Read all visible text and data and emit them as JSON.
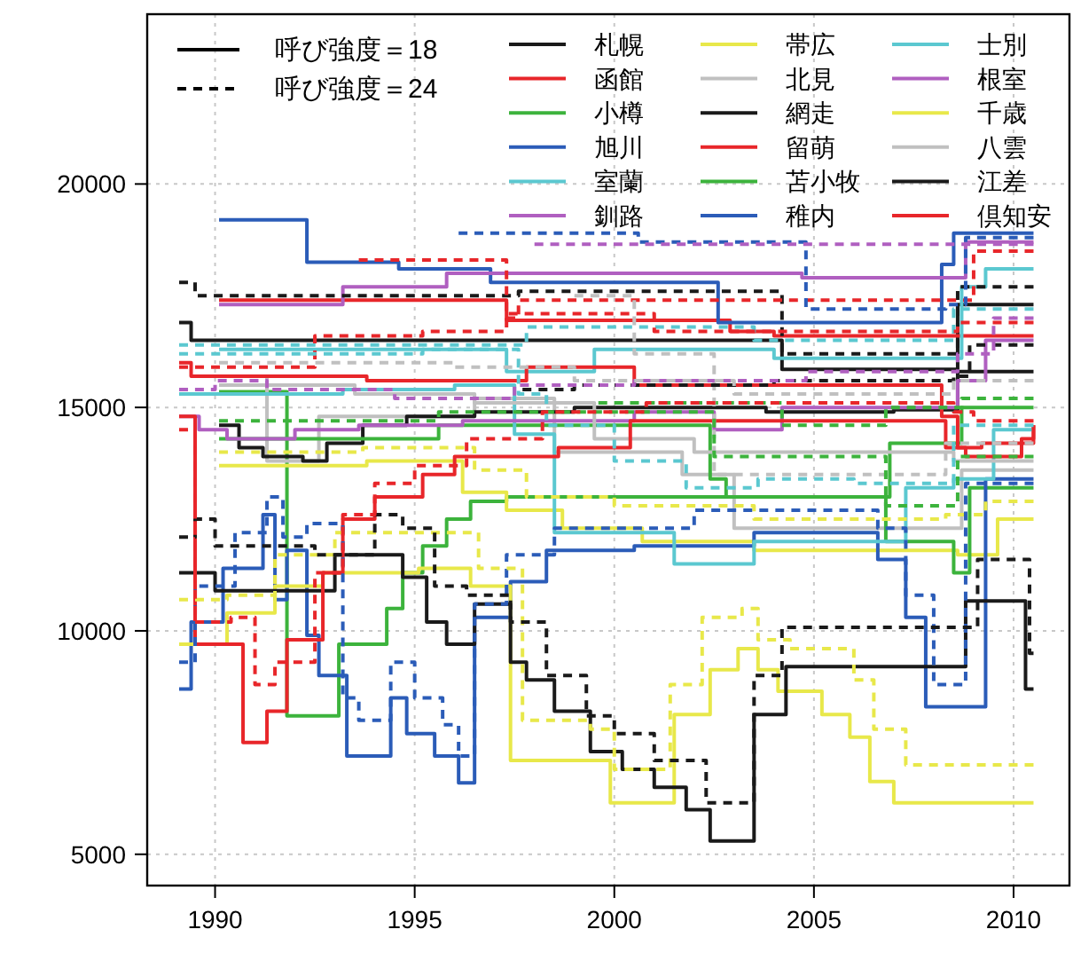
{
  "chart_data": {
    "type": "step",
    "xlim": [
      1988.3,
      2011.4
    ],
    "ylim": [
      4300,
      23800
    ],
    "xticks": [
      1990,
      1995,
      2000,
      2005,
      2010
    ],
    "yticks": [
      5000,
      10000,
      15000,
      20000
    ],
    "grid": true,
    "legend": "top",
    "annotations": [
      "呼び強度＝18",
      "呼び強度＝24"
    ],
    "series": [
      {
        "name": "札幌",
        "color": "#1a1a1a",
        "line_style": "solid",
        "x": [
          1989.1,
          1989.4,
          2004.2,
          2008.6,
          2010.5
        ],
        "values": [
          16900,
          16500,
          15850,
          17300,
          17300
        ]
      },
      {
        "name": "函館",
        "color": "#e8262a",
        "line_style": "solid",
        "x": [
          1990.1,
          1997.3,
          2002.9,
          2004,
          2010.5
        ],
        "values": [
          17400,
          16950,
          16700,
          16600,
          16600
        ]
      },
      {
        "name": "小樽",
        "color": "#3cb33c",
        "line_style": "solid",
        "x": [
          1990.1,
          1991.8,
          1993.1,
          1994.3,
          1994.7,
          1995.2,
          1995.8,
          1996.4,
          1997.3,
          2006.9,
          2008.7,
          2010.5
        ],
        "values": [
          15350,
          8100,
          9700,
          10500,
          11300,
          11900,
          12500,
          12900,
          13000,
          14200,
          15000,
          15000
        ]
      },
      {
        "name": "旭川",
        "color": "#2b5cb8",
        "line_style": "solid",
        "x": [
          1990.1,
          1992.3,
          1994.6,
          1996.9,
          2002.6,
          2008.2,
          2008.5,
          2010.5
        ],
        "values": [
          19200,
          18250,
          18100,
          17800,
          16900,
          18200,
          18900,
          18900
        ]
      },
      {
        "name": "室蘭",
        "color": "#5bc8d0",
        "line_style": "solid",
        "x": [
          1990.1,
          1997.3,
          1999.5,
          2004,
          2008.7,
          2009.3,
          2010.5
        ],
        "values": [
          16300,
          15800,
          16300,
          16100,
          17700,
          18100,
          18100
        ]
      },
      {
        "name": "釧路",
        "color": "#b05fc0",
        "line_style": "solid",
        "x": [
          1990.1,
          1993.2,
          1995.8,
          2004.7,
          2008.8,
          2010.5
        ],
        "values": [
          17300,
          17700,
          18000,
          17900,
          18700,
          18700
        ]
      },
      {
        "name": "帯広",
        "color": "#e8e84a",
        "line_style": "solid",
        "x": [
          1990.1,
          1993.8,
          1996.2,
          1997.3,
          1998.7,
          2000.7,
          2003.5,
          2006.5,
          2008.6,
          2009.6,
          2010.5
        ],
        "values": [
          13700,
          13800,
          13100,
          12700,
          12300,
          12000,
          11800,
          11800,
          11700,
          12500,
          12500
        ]
      },
      {
        "name": "北見",
        "color": "#c0c0c0",
        "line_style": "solid",
        "x": [
          1990.1,
          1991.3,
          1992.6,
          1996.5,
          1998.5,
          2001.7,
          2003,
          2008.7,
          2010.5
        ],
        "values": [
          15700,
          13800,
          14800,
          15200,
          14000,
          13500,
          12300,
          13600,
          13600
        ]
      },
      {
        "name": "網走",
        "color": "#1a1a1a",
        "line_style": "solid",
        "x": [
          1990.1,
          1990.6,
          1991.2,
          1992.2,
          1992.8,
          1993.7,
          1994.8,
          1996.5,
          1999,
          2003.8,
          2007,
          2008.6,
          2010.5
        ],
        "values": [
          14600,
          14100,
          13900,
          13800,
          14200,
          14600,
          14800,
          14900,
          15000,
          14900,
          14950,
          15800,
          15800
        ]
      },
      {
        "name": "留萌",
        "color": "#e8262a",
        "line_style": "solid",
        "x": [
          1989.1,
          1989.4,
          1993.8,
          1997.8,
          2000.5,
          2008.2,
          2008.6,
          2009.2,
          2010.5
        ],
        "values": [
          16000,
          15700,
          15600,
          15900,
          15500,
          14800,
          14100,
          14200,
          14600
        ]
      },
      {
        "name": "苫小牧",
        "color": "#3cb33c",
        "line_style": "solid",
        "x": [
          1990.1,
          1995.6,
          2002.4,
          2002.8,
          2006.8,
          2008.5,
          2008.9,
          2010.5
        ],
        "values": [
          14300,
          14600,
          13400,
          13000,
          12000,
          11300,
          13200,
          13200
        ]
      },
      {
        "name": "稚内",
        "color": "#2b5cb8",
        "line_style": "solid",
        "x": [
          1989.1,
          1989.4,
          1990.2,
          1991.2,
          1991.5,
          1991.8,
          1992.3,
          1992.6,
          1993.3,
          1994.4,
          1994.8,
          1995.5,
          1996.1,
          1996.5,
          1997.4,
          1998.3,
          2000.5,
          2003.5,
          2006.6,
          2007.3,
          2007.8,
          2008.3,
          2009.3,
          2010.5
        ],
        "values": [
          8700,
          10200,
          11400,
          12600,
          10700,
          11800,
          9900,
          9000,
          7200,
          8500,
          7700,
          7200,
          6600,
          10300,
          11100,
          11800,
          11900,
          12200,
          11600,
          10300,
          8300,
          8300,
          13400,
          13400
        ]
      },
      {
        "name": "士別",
        "color": "#5bc8d0",
        "line_style": "solid",
        "x": [
          1989.1,
          1993.2,
          1996,
          1997.5,
          1998.5,
          2001.5,
          2003.5,
          2007.3,
          2008.5,
          2009.5,
          2010.5
        ],
        "values": [
          15300,
          15400,
          15500,
          14400,
          12200,
          11500,
          12000,
          13200,
          13400,
          14500,
          14500
        ]
      },
      {
        "name": "根室",
        "color": "#b05fc0",
        "line_style": "solid",
        "x": [
          1989.1,
          1989.6,
          1990.3,
          1992,
          1993.6,
          1996.2,
          2000.5,
          2002.5,
          2004.2,
          2008.6,
          2009.3,
          2010.5
        ],
        "values": [
          14800,
          14500,
          14300,
          14500,
          14600,
          14700,
          14900,
          14500,
          15000,
          15600,
          16500,
          16500
        ]
      },
      {
        "name": "千歳",
        "color": "#e8e84a",
        "line_style": "solid",
        "x": [
          1989.1,
          1990.3,
          1991.5,
          1992.7,
          1995.1,
          1996.4,
          1997.4,
          1999.9,
          2001.5,
          2002.4,
          2003.1,
          2003.6,
          2004.1,
          2005.2,
          2005.9,
          2006.4,
          2007,
          2010.5
        ],
        "values": [
          9700,
          10400,
          11000,
          11300,
          11400,
          11000,
          7100,
          6150,
          8130,
          9130,
          9600,
          9130,
          8650,
          8130,
          7620,
          6630,
          6150,
          6150
        ]
      },
      {
        "name": "八雲",
        "color": "#c0c0c0",
        "line_style": "solid",
        "x": [
          1990.1,
          1993.5,
          1996.5,
          1999.5,
          2002,
          2008.5,
          2010.5
        ],
        "values": [
          15500,
          15300,
          15100,
          14300,
          14000,
          13800,
          13800
        ]
      },
      {
        "name": "江差",
        "color": "#1a1a1a",
        "line_style": "solid",
        "x": [
          1989.1,
          1990,
          1993,
          1994.7,
          1995.3,
          1995.8,
          1996.5,
          1997.4,
          1997.8,
          1998.5,
          1999.4,
          2000.2,
          2001,
          2001.8,
          2002.4,
          2003.5,
          2004.3,
          2008.8,
          2010.3,
          2010.5
        ],
        "values": [
          11300,
          10900,
          11700,
          11200,
          10200,
          9700,
          10600,
          9300,
          8900,
          8200,
          7300,
          6900,
          6500,
          6000,
          5300,
          8130,
          9200,
          10670,
          8700,
          8700
        ]
      },
      {
        "name": "倶知安",
        "color": "#e8262a",
        "line_style": "solid",
        "x": [
          1989.1,
          1989.5,
          1990.7,
          1991.3,
          1991.8,
          1992.7,
          1993.2,
          1994,
          1995.2,
          1996,
          1998.6,
          2000.4,
          2007.6,
          2008.3,
          2008.8,
          2010.2,
          2010.5
        ],
        "values": [
          14800,
          9700,
          7500,
          8200,
          9800,
          11300,
          12500,
          13000,
          13500,
          13900,
          14100,
          14700,
          14700,
          14100,
          13900,
          14300,
          14600
        ]
      },
      {
        "color": "#1a1a1a",
        "line_style": "dashed",
        "x": [
          1989.1,
          1989.5,
          1997.6,
          2004.2,
          2008.6,
          2010.5
        ],
        "values": [
          17800,
          17500,
          17600,
          16200,
          17700,
          17700
        ]
      },
      {
        "color": "#e8262a",
        "line_style": "dashed",
        "x": [
          1993.6,
          1997.3,
          1997.6,
          2008.6,
          2009,
          2010.5
        ],
        "values": [
          18300,
          17000,
          17400,
          17400,
          18500,
          18500
        ]
      },
      {
        "color": "#3cb33c",
        "line_style": "dashed",
        "x": [
          1999.6,
          2004.2,
          2006.8,
          2008.7,
          2010.5
        ],
        "values": [
          15100,
          14600,
          15000,
          15200,
          15200
        ]
      },
      {
        "color": "#2b5cb8",
        "line_style": "dashed",
        "x": [
          1996.1,
          2000.6,
          2004.5,
          2004.8,
          2008.3,
          2008.8,
          2010.5
        ],
        "values": [
          18900,
          18700,
          18700,
          17200,
          17300,
          18800,
          18800
        ]
      },
      {
        "color": "#5bc8d0",
        "line_style": "dashed",
        "x": [
          1989.1,
          1997.8,
          2003.5,
          2008.5,
          2010.5
        ],
        "values": [
          16400,
          16800,
          16500,
          17200,
          17200
        ]
      },
      {
        "color": "#b05fc0",
        "line_style": "dashed",
        "x": [
          1998,
          2010.5
        ],
        "values": [
          18650,
          18650
        ]
      },
      {
        "color": "#e8e84a",
        "line_style": "dashed",
        "x": [
          1990.1,
          1993.7,
          1996.5,
          1997.8,
          2000,
          2003.5,
          2008.3,
          2009.3,
          2010.5
        ],
        "values": [
          14000,
          14100,
          13600,
          13000,
          12800,
          12500,
          12600,
          12900,
          12900
        ]
      },
      {
        "color": "#c0c0c0",
        "line_style": "dashed",
        "x": [
          1999,
          2000.5,
          2002.5,
          2008.3,
          2010.5
        ],
        "values": [
          17500,
          16200,
          13500,
          14200,
          14200
        ]
      },
      {
        "color": "#1a1a1a",
        "line_style": "dashed",
        "x": [
          1997.7,
          1999,
          2004,
          2008.5,
          2008.9,
          2010.5
        ],
        "values": [
          15400,
          15500,
          15600,
          15700,
          16400,
          16400
        ]
      },
      {
        "color": "#e8262a",
        "line_style": "dashed",
        "x": [
          1989.1,
          1992.5,
          1995.2,
          1997.3,
          2001,
          2008.6,
          2010.5
        ],
        "values": [
          15900,
          16600,
          16700,
          17100,
          16700,
          16900,
          16900
        ]
      },
      {
        "color": "#3cb33c",
        "line_style": "dashed",
        "x": [
          1990.1,
          1995.6,
          2002.5,
          2006.8,
          2008.6,
          2010.5
        ],
        "values": [
          14700,
          14900,
          13900,
          12800,
          13900,
          13900
        ]
      },
      {
        "color": "#2b5cb8",
        "line_style": "dashed",
        "x": [
          1989.1,
          1989.5,
          1990.5,
          1991.3,
          1991.7,
          1992.3,
          1993.2,
          1993.6,
          1994.4,
          1995,
          1995.7,
          1996.1,
          1996.5,
          1997.3,
          1998.5,
          2002,
          2006.6,
          2007.3,
          2008,
          2008.8,
          2010.5
        ],
        "values": [
          9300,
          11000,
          12200,
          13000,
          12100,
          12400,
          8500,
          8000,
          9300,
          8500,
          7900,
          7200,
          10600,
          11700,
          12300,
          12700,
          12300,
          10800,
          8800,
          13300,
          13300
        ]
      },
      {
        "color": "#5bc8d0",
        "line_style": "dashed",
        "x": [
          1989.1,
          1995.2,
          1997.6,
          1998.3,
          2000,
          2001.8,
          2003.6,
          2006,
          2008.5,
          2010.5
        ],
        "values": [
          16200,
          16300,
          15300,
          14600,
          13800,
          13200,
          13400,
          13300,
          14600,
          14600
        ]
      },
      {
        "color": "#b05fc0",
        "line_style": "dashed",
        "x": [
          1989.1,
          1990,
          1991.3,
          1994.5,
          1997.5,
          2000.5,
          2004.8,
          2008.6,
          2009.5,
          2010.5
        ],
        "values": [
          15400,
          15600,
          15400,
          15200,
          15500,
          15600,
          15800,
          16200,
          17000,
          17000
        ]
      },
      {
        "color": "#e8e84a",
        "line_style": "dashed",
        "x": [
          1989.1,
          1990.3,
          1991.5,
          1993,
          1996.6,
          1997.7,
          1999.4,
          2000,
          2001.4,
          2002.2,
          2003.2,
          2003.6,
          2004.4,
          2006,
          2006.5,
          2007.3,
          2010.5
        ],
        "values": [
          10700,
          10800,
          11700,
          12200,
          11400,
          8000,
          7800,
          6900,
          8800,
          10300,
          10500,
          9800,
          9600,
          8900,
          7800,
          7000,
          7000
        ]
      },
      {
        "color": "#c0c0c0",
        "line_style": "dashed",
        "x": [
          1990.1,
          1996,
          1999,
          2003,
          2008.5,
          2010.5
        ],
        "values": [
          16000,
          15900,
          15600,
          15300,
          15600,
          15600
        ]
      },
      {
        "color": "#1a1a1a",
        "line_style": "dashed",
        "x": [
          1989.1,
          1989.5,
          1990,
          1992.5,
          1994,
          1994.7,
          1995.5,
          1996.3,
          1997.4,
          1998.3,
          1999.3,
          2000,
          2001,
          2002.3,
          2003.5,
          2004.2,
          2009.1,
          2010.4,
          2010.5
        ],
        "values": [
          12100,
          12500,
          11900,
          11700,
          12600,
          12300,
          11000,
          10800,
          10200,
          9000,
          8100,
          7700,
          7100,
          6150,
          9000,
          10080,
          11600,
          9500,
          9500
        ]
      },
      {
        "color": "#e8262a",
        "line_style": "dashed",
        "x": [
          1989.1,
          1989.5,
          1990.4,
          1991,
          1991.5,
          1992.5,
          1993.2,
          1994,
          1995,
          1996.3,
          1998.2,
          2000.8,
          2008.5,
          2009,
          2010.5
        ],
        "values": [
          14500,
          10200,
          10300,
          8800,
          9300,
          11300,
          12600,
          13300,
          13700,
          14300,
          14900,
          15100,
          14900,
          14700,
          14700
        ]
      }
    ]
  }
}
